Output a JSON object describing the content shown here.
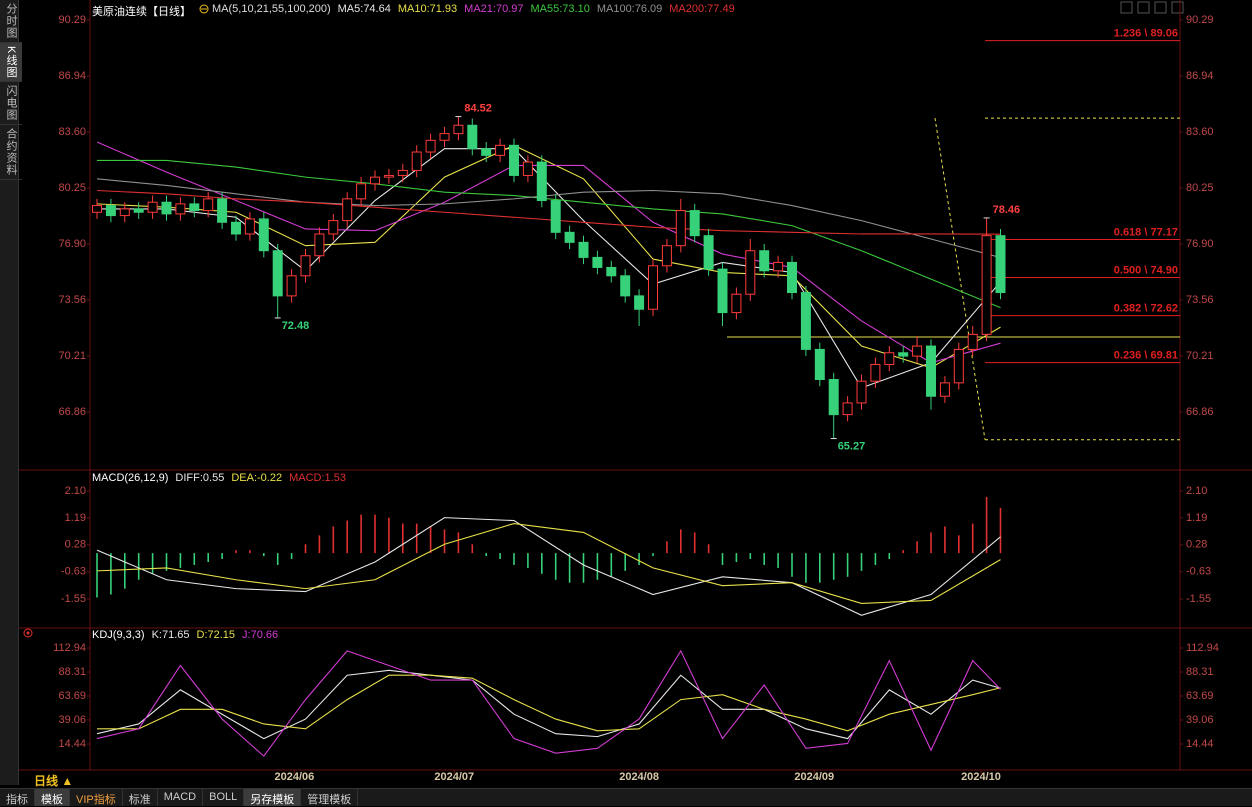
{
  "ui": {
    "sidebar": [
      "分时图",
      "K线图",
      "闪电图",
      "合约资料"
    ],
    "period": "日线 ▲",
    "tabs": [
      "指标",
      "模板",
      "VIP指标",
      "标准",
      "MACD",
      "BOLL",
      "另存模板",
      "管理模板"
    ]
  },
  "chart_data": [
    {
      "type": "candlestick",
      "title": "美原油连续【日线】",
      "legend_title": "MA(5,10,21,55,100,200)",
      "ylim": [
        63.39,
        91.19
      ],
      "yticks": [
        90.29,
        86.94,
        {
          "value": 83.6,
          "label": "83.60"
        },
        80.25,
        {
          "value": 76.9,
          "label": "76.90"
        },
        73.56,
        70.21,
        66.86
      ],
      "xticks": [
        {
          "value": 14.2,
          "label": "2024/06"
        },
        {
          "value": 25.7,
          "label": "2024/07"
        },
        {
          "value": 39,
          "label": "2024/08"
        },
        {
          "value": 51.6,
          "label": "2024/09"
        },
        {
          "value": 63.6,
          "label": "2024/10"
        }
      ],
      "up_color": "#ff3b3b",
      "down_color": "#36d178",
      "ohlc": [
        [
          78.8,
          79.6,
          78.4,
          79.2
        ],
        [
          79.2,
          79.6,
          78.2,
          78.6
        ],
        [
          78.6,
          79.4,
          78.2,
          79.0
        ],
        [
          79.0,
          79.4,
          78.4,
          78.8
        ],
        [
          78.8,
          79.8,
          78.4,
          79.4
        ],
        [
          79.4,
          79.8,
          78.3,
          78.7
        ],
        [
          78.7,
          79.7,
          78.3,
          79.3
        ],
        [
          79.3,
          79.7,
          78.5,
          78.9
        ],
        [
          78.9,
          80.0,
          78.5,
          79.6
        ],
        [
          79.6,
          80.0,
          77.8,
          78.2
        ],
        [
          78.2,
          78.6,
          77.1,
          77.5
        ],
        [
          77.5,
          78.8,
          77.1,
          78.4
        ],
        [
          78.4,
          78.8,
          76.1,
          76.5
        ],
        [
          76.5,
          76.9,
          72.48,
          73.8
        ],
        [
          73.8,
          75.4,
          73.4,
          75.0
        ],
        [
          75.0,
          76.6,
          74.6,
          76.2
        ],
        [
          76.2,
          77.9,
          75.8,
          77.5
        ],
        [
          77.5,
          78.7,
          77.1,
          78.3
        ],
        [
          78.3,
          80.0,
          77.9,
          79.6
        ],
        [
          79.6,
          80.9,
          79.2,
          80.5
        ],
        [
          80.5,
          81.3,
          80.1,
          80.9
        ],
        [
          80.9,
          81.4,
          80.5,
          81.0
        ],
        [
          81.0,
          81.7,
          80.6,
          81.3
        ],
        [
          81.3,
          82.8,
          80.9,
          82.4
        ],
        [
          82.4,
          83.5,
          82.0,
          83.1
        ],
        [
          83.1,
          83.9,
          82.7,
          83.5
        ],
        [
          83.5,
          84.52,
          83.1,
          84.0
        ],
        [
          84.0,
          84.4,
          82.2,
          82.6
        ],
        [
          82.6,
          83.0,
          81.8,
          82.2
        ],
        [
          82.2,
          83.2,
          81.8,
          82.8
        ],
        [
          82.8,
          83.2,
          80.6,
          81.0
        ],
        [
          81.0,
          82.2,
          80.6,
          81.8
        ],
        [
          81.8,
          82.2,
          79.1,
          79.5
        ],
        [
          79.5,
          79.9,
          77.2,
          77.6
        ],
        [
          77.6,
          78.0,
          76.6,
          77.0
        ],
        [
          77.0,
          77.4,
          75.7,
          76.1
        ],
        [
          76.1,
          76.5,
          75.1,
          75.5
        ],
        [
          75.5,
          75.9,
          74.6,
          75.0
        ],
        [
          75.0,
          75.4,
          73.4,
          73.8
        ],
        [
          73.8,
          74.2,
          72.0,
          73.0
        ],
        [
          73.0,
          76.0,
          72.6,
          75.6
        ],
        [
          75.6,
          77.2,
          75.2,
          76.8
        ],
        [
          76.8,
          79.6,
          76.4,
          78.9
        ],
        [
          78.9,
          79.3,
          77.0,
          77.4
        ],
        [
          77.4,
          77.8,
          75.0,
          75.4
        ],
        [
          75.4,
          75.8,
          72.0,
          72.8
        ],
        [
          72.8,
          74.3,
          72.4,
          73.9
        ],
        [
          73.9,
          77.2,
          73.5,
          76.5
        ],
        [
          76.5,
          76.9,
          74.9,
          75.3
        ],
        [
          75.3,
          76.2,
          74.9,
          75.8
        ],
        [
          75.8,
          76.2,
          73.6,
          74.0
        ],
        [
          74.0,
          74.4,
          70.2,
          70.6
        ],
        [
          70.6,
          71.0,
          68.4,
          68.8
        ],
        [
          68.8,
          69.2,
          65.27,
          66.7
        ],
        [
          66.7,
          67.8,
          66.3,
          67.4
        ],
        [
          67.4,
          69.1,
          67.0,
          68.7
        ],
        [
          68.7,
          70.1,
          68.3,
          69.7
        ],
        [
          69.7,
          70.8,
          69.3,
          70.4
        ],
        [
          70.4,
          70.8,
          69.8,
          70.2
        ],
        [
          70.2,
          71.4,
          69.8,
          70.8
        ],
        [
          70.8,
          71.2,
          67.0,
          67.8
        ],
        [
          67.8,
          69.0,
          67.4,
          68.6
        ],
        [
          68.6,
          71.0,
          68.2,
          70.6
        ],
        [
          70.6,
          72.0,
          70.2,
          71.5
        ],
        [
          71.5,
          78.46,
          71.1,
          77.4
        ],
        [
          77.4,
          77.8,
          73.6,
          74.0
        ]
      ],
      "high_labels": [
        84.52,
        78.46
      ],
      "low_labels": [
        72.48,
        65.27
      ],
      "high_color": "#ff4040",
      "low_color": "#36d178",
      "x": [
        0,
        5,
        10,
        15,
        20,
        25,
        30,
        35,
        40,
        45,
        50,
        55,
        60,
        65
      ],
      "series": [
        {
          "name": "MA5:74.64",
          "color": "#e6e6e6",
          "values": [
            79.0,
            79.0,
            78.5,
            75.3,
            79.5,
            82.6,
            82.6,
            78.3,
            74.5,
            75.8,
            75.2,
            68.3,
            69.8,
            74.64
          ]
        },
        {
          "name": "MA10:71.93",
          "color": "#e8e04a",
          "values": [
            79.3,
            79.1,
            78.8,
            76.8,
            77.0,
            80.9,
            82.8,
            80.8,
            76.0,
            75.2,
            75.0,
            70.8,
            69.5,
            71.93
          ]
        },
        {
          "name": "MA21:70.97",
          "color": "#d23cd2",
          "values": [
            83.0,
            81.2,
            79.5,
            77.8,
            77.7,
            79.4,
            81.6,
            81.6,
            78.2,
            76.3,
            75.5,
            72.3,
            69.8,
            70.97
          ]
        },
        {
          "name": "MA55:73.10",
          "color": "#3cc83c",
          "values": [
            81.9,
            81.9,
            81.5,
            80.9,
            80.5,
            80.0,
            79.8,
            79.4,
            79.0,
            78.7,
            78.0,
            76.5,
            74.8,
            73.1
          ]
        },
        {
          "name": "MA100:76.09",
          "color": "#909090",
          "values": [
            80.8,
            80.4,
            79.9,
            79.4,
            79.2,
            79.3,
            79.6,
            80.0,
            80.1,
            79.9,
            79.2,
            78.3,
            77.2,
            76.09
          ]
        },
        {
          "name": "MA200:77.49",
          "color": "#e03030",
          "values": [
            80.1,
            79.9,
            79.6,
            79.4,
            79.1,
            78.8,
            78.5,
            78.2,
            77.9,
            77.7,
            77.6,
            77.5,
            77.5,
            77.49
          ]
        }
      ],
      "fib_color": "#e02020",
      "fib_levels": [
        {
          "value": 89.06,
          "label": "1.236 \\ 89.06"
        },
        {
          "value": 77.17,
          "label": "0.618 \\ 77.17"
        },
        {
          "value": 74.9,
          "label": "0.500 \\ 74.90"
        },
        {
          "value": 72.62,
          "label": "0.382 \\ 72.62"
        },
        {
          "value": 69.81,
          "label": "0.236 \\ 69.81"
        }
      ],
      "support_line": {
        "value": 71.34,
        "color": "#e8e04a"
      },
      "dashed_levels": [
        84.43,
        65.2
      ]
    },
    {
      "type": "macd",
      "title": "MACD(26,12,9)",
      "ylim": [
        -2.43,
        2.81
      ],
      "yticks": [
        {
          "value": 2.1,
          "label": "2.10"
        },
        1.19,
        0.28,
        -0.63,
        -1.55
      ],
      "histogram": {
        "name": "MACD:1.53",
        "up_color": "#e03030",
        "down_color": "#36d178",
        "values": [
          -1.5,
          -1.4,
          -1.2,
          -0.9,
          -0.7,
          -0.6,
          -0.5,
          -0.4,
          -0.3,
          -0.2,
          0.1,
          0.1,
          -0.1,
          -0.4,
          -0.2,
          0.3,
          0.6,
          0.9,
          1.1,
          1.3,
          1.3,
          1.2,
          1.0,
          1.0,
          0.9,
          0.8,
          0.7,
          0.3,
          -0.1,
          -0.2,
          -0.4,
          -0.5,
          -0.7,
          -0.9,
          -1.0,
          -1.0,
          -0.9,
          -0.8,
          -0.6,
          -0.4,
          -0.1,
          0.4,
          0.8,
          0.7,
          0.3,
          -0.4,
          -0.3,
          -0.2,
          -0.4,
          -0.5,
          -0.8,
          -1.0,
          -1.0,
          -0.9,
          -0.8,
          -0.6,
          -0.4,
          -0.2,
          0.1,
          0.4,
          0.7,
          0.9,
          0.6,
          1.0,
          1.9,
          1.53
        ]
      },
      "x": [
        0,
        5,
        10,
        15,
        20,
        25,
        30,
        35,
        40,
        45,
        50,
        55,
        60,
        65
      ],
      "series": [
        {
          "name": "DIFF:0.55",
          "color": "#e6e6e6",
          "values": [
            0.1,
            -0.9,
            -1.2,
            -1.3,
            -0.3,
            1.2,
            1.1,
            -0.4,
            -1.4,
            -0.8,
            -1.0,
            -2.1,
            -1.4,
            0.55
          ]
        },
        {
          "name": "DEA:-0.22",
          "color": "#e8e04a",
          "values": [
            -0.6,
            -0.5,
            -0.9,
            -1.2,
            -0.9,
            0.3,
            1.0,
            0.7,
            -0.5,
            -1.1,
            -1.0,
            -1.7,
            -1.6,
            -0.22
          ]
        }
      ]
    },
    {
      "type": "kdj",
      "title": "KDJ(9,3,3)",
      "ylim": [
        -12.24,
        133.46
      ],
      "yticks": [
        112.94,
        88.31,
        63.69,
        39.06,
        14.44
      ],
      "x": [
        0,
        3,
        6,
        9,
        12,
        15,
        18,
        21,
        24,
        27,
        30,
        33,
        36,
        39,
        42,
        45,
        48,
        51,
        54,
        57,
        60,
        63,
        65
      ],
      "series": [
        {
          "name": "K:71.65",
          "color": "#e6e6e6",
          "values": [
            25,
            35,
            70,
            45,
            20,
            40,
            85,
            90,
            85,
            80,
            45,
            25,
            22,
            35,
            85,
            50,
            50,
            30,
            20,
            70,
            45,
            80,
            71.65
          ]
        },
        {
          "name": "D:72.15",
          "color": "#e8e04a",
          "values": [
            30,
            30,
            50,
            50,
            35,
            30,
            60,
            85,
            85,
            82,
            60,
            40,
            28,
            30,
            60,
            65,
            50,
            40,
            28,
            45,
            55,
            65,
            72.15
          ]
        },
        {
          "name": "J:70.66",
          "color": "#d23cd2",
          "values": [
            20,
            30,
            95,
            40,
            2,
            60,
            110,
            95,
            80,
            80,
            20,
            5,
            10,
            40,
            110,
            20,
            75,
            10,
            15,
            100,
            8,
            100,
            70.66
          ]
        }
      ]
    }
  ]
}
